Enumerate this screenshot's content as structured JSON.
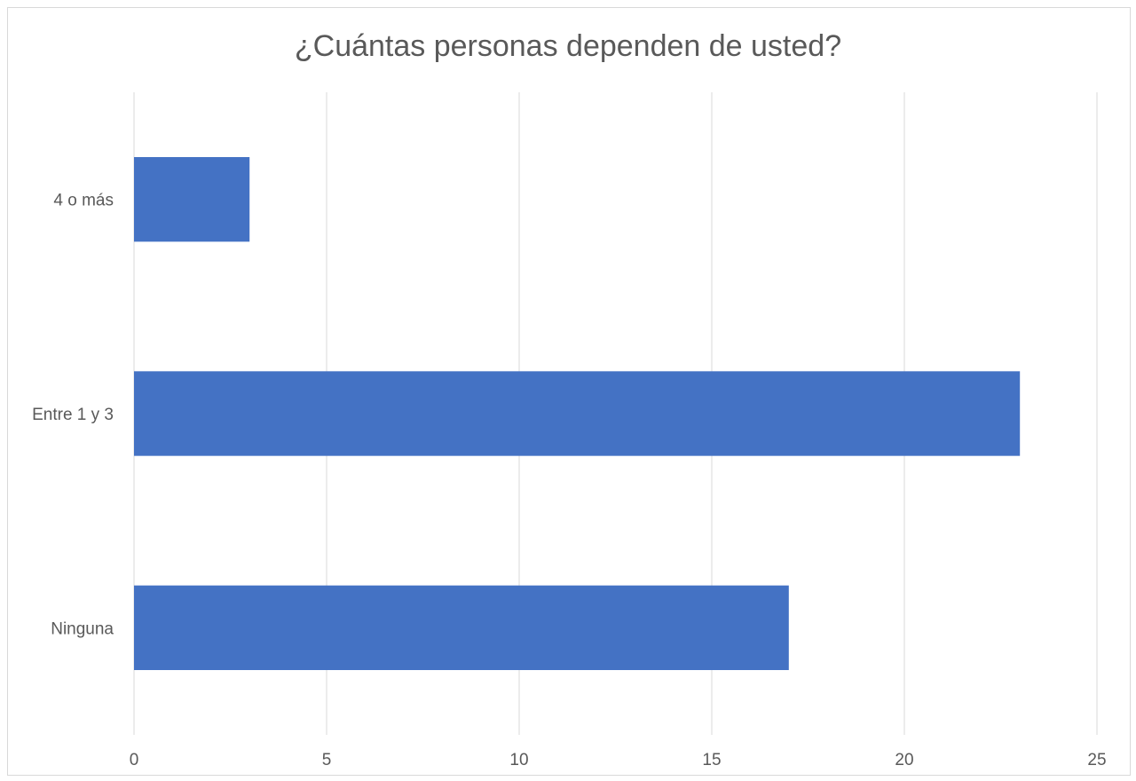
{
  "chart_data": {
    "type": "bar",
    "orientation": "horizontal",
    "title": "¿Cuántas personas dependen de usted?",
    "categories": [
      "Ninguna",
      "Entre 1 y 3",
      "4 o más"
    ],
    "values": [
      17,
      23,
      3
    ],
    "xlim": [
      0,
      25
    ],
    "x_ticks": [
      0,
      5,
      10,
      15,
      20,
      25
    ],
    "grid": true,
    "legend": "none",
    "bar_color": "#4472C4",
    "grid_color": "#d9d9d9"
  }
}
